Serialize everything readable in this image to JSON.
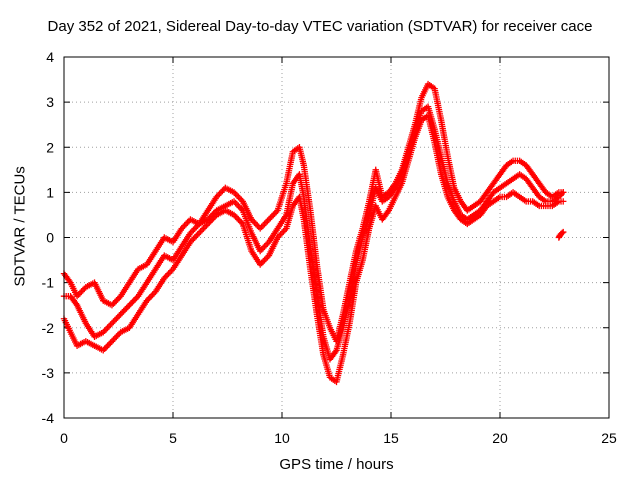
{
  "chart_data": {
    "type": "scatter",
    "title": "Day 352 of 2021, Sidereal Day-to-day VTEC variation (SDTVAR) for receiver cace",
    "xlabel": "GPS time / hours",
    "ylabel": "SDTVAR / TECUs",
    "xlim": [
      0,
      25
    ],
    "ylim": [
      -4,
      4
    ],
    "xticks": [
      0,
      5,
      10,
      15,
      20,
      25
    ],
    "yticks": [
      -4,
      -3,
      -2,
      -1,
      0,
      1,
      2,
      3,
      4
    ],
    "grid": true,
    "marker": "+",
    "color": "#ff0000",
    "series": [
      {
        "x": [
          0.0,
          0.3,
          0.6,
          1.0,
          1.4,
          1.8,
          2.2,
          2.6,
          3.0,
          3.4,
          3.8,
          4.2,
          4.6,
          5.0,
          5.4,
          5.8,
          6.2,
          6.6,
          7.0,
          7.4,
          7.8,
          8.2,
          8.6,
          9.0,
          9.4,
          9.8,
          10.2,
          10.5,
          10.8,
          11.0,
          11.3,
          11.6,
          11.9,
          12.2,
          12.5,
          12.8,
          13.1,
          13.4,
          13.7,
          14.0,
          14.3,
          14.6,
          14.9,
          15.2,
          15.5,
          15.8,
          16.1,
          16.4,
          16.7,
          17.0,
          17.3,
          17.6,
          17.9,
          18.2,
          18.5,
          18.8,
          19.1,
          19.4,
          19.7,
          20.0,
          20.3,
          20.6,
          20.9,
          21.2,
          21.5,
          21.8,
          22.1,
          22.4,
          22.7,
          22.9
        ],
        "y": [
          -0.8,
          -1.0,
          -1.3,
          -1.1,
          -1.0,
          -1.4,
          -1.5,
          -1.3,
          -1.0,
          -0.7,
          -0.6,
          -0.3,
          0.0,
          -0.1,
          0.2,
          0.4,
          0.3,
          0.6,
          0.9,
          1.1,
          1.0,
          0.8,
          0.4,
          0.2,
          0.4,
          0.6,
          1.2,
          1.9,
          2.0,
          1.6,
          0.6,
          -0.6,
          -1.6,
          -2.0,
          -2.3,
          -1.7,
          -1.0,
          -0.3,
          0.2,
          0.8,
          1.5,
          0.9,
          1.0,
          1.2,
          1.5,
          2.0,
          2.5,
          3.1,
          3.4,
          3.3,
          2.6,
          1.8,
          1.1,
          0.8,
          0.6,
          0.7,
          0.8,
          1.0,
          1.2,
          1.4,
          1.6,
          1.7,
          1.7,
          1.6,
          1.4,
          1.2,
          1.0,
          0.9,
          1.0,
          1.0
        ]
      },
      {
        "x": [
          0.0,
          0.3,
          0.6,
          1.0,
          1.4,
          1.8,
          2.2,
          2.6,
          3.0,
          3.4,
          3.8,
          4.2,
          4.6,
          5.0,
          5.4,
          5.8,
          6.2,
          6.6,
          7.0,
          7.4,
          7.8,
          8.2,
          8.6,
          9.0,
          9.4,
          9.8,
          10.2,
          10.5,
          10.8,
          11.0,
          11.3,
          11.6,
          11.9,
          12.2,
          12.5,
          12.8,
          13.1,
          13.4,
          13.7,
          14.0,
          14.3,
          14.6,
          14.9,
          15.2,
          15.5,
          15.8,
          16.1,
          16.4,
          16.7,
          17.0,
          17.3,
          17.6,
          17.9,
          18.2,
          18.5,
          18.8,
          19.1,
          19.4,
          19.7,
          20.0,
          20.3,
          20.6,
          20.9,
          21.2,
          21.5,
          21.8,
          22.1,
          22.4,
          22.7,
          22.9
        ],
        "y": [
          -1.3,
          -1.3,
          -1.5,
          -1.9,
          -2.2,
          -2.1,
          -1.9,
          -1.7,
          -1.5,
          -1.3,
          -1.0,
          -0.7,
          -0.4,
          -0.5,
          -0.2,
          0.1,
          0.3,
          0.4,
          0.6,
          0.7,
          0.8,
          0.6,
          0.1,
          -0.3,
          -0.1,
          0.2,
          0.5,
          1.2,
          1.4,
          0.9,
          -0.2,
          -1.2,
          -2.2,
          -2.7,
          -2.5,
          -2.0,
          -1.4,
          -0.6,
          0.0,
          0.5,
          1.1,
          0.8,
          0.9,
          1.1,
          1.4,
          1.9,
          2.3,
          2.8,
          2.9,
          2.4,
          1.8,
          1.2,
          0.8,
          0.5,
          0.4,
          0.5,
          0.6,
          0.8,
          1.0,
          1.1,
          1.2,
          1.3,
          1.4,
          1.3,
          1.1,
          0.9,
          0.8,
          0.8,
          0.9,
          1.0
        ]
      },
      {
        "x": [
          0.0,
          0.3,
          0.6,
          1.0,
          1.4,
          1.8,
          2.2,
          2.6,
          3.0,
          3.4,
          3.8,
          4.2,
          4.6,
          5.0,
          5.4,
          5.8,
          6.2,
          6.6,
          7.0,
          7.4,
          7.8,
          8.2,
          8.6,
          9.0,
          9.4,
          9.8,
          10.2,
          10.5,
          10.8,
          11.0,
          11.3,
          11.6,
          11.9,
          12.2,
          12.5,
          12.8,
          13.1,
          13.4,
          13.7,
          14.0,
          14.3,
          14.6,
          14.9,
          15.2,
          15.5,
          15.8,
          16.1,
          16.4,
          16.7,
          17.0,
          17.3,
          17.6,
          17.9,
          18.2,
          18.5,
          18.8,
          19.1,
          19.4,
          19.7,
          20.0,
          20.3,
          20.6,
          20.9,
          21.2,
          21.5,
          21.8,
          22.1,
          22.4,
          22.7,
          22.9
        ],
        "y": [
          -1.8,
          -2.1,
          -2.4,
          -2.3,
          -2.4,
          -2.5,
          -2.3,
          -2.1,
          -2.0,
          -1.7,
          -1.4,
          -1.2,
          -0.9,
          -0.7,
          -0.4,
          -0.1,
          0.1,
          0.3,
          0.5,
          0.6,
          0.5,
          0.3,
          -0.3,
          -0.6,
          -0.4,
          0.0,
          0.2,
          0.7,
          0.9,
          0.4,
          -0.7,
          -1.7,
          -2.6,
          -3.1,
          -3.2,
          -2.6,
          -1.9,
          -1.0,
          -0.5,
          0.2,
          0.7,
          0.4,
          0.6,
          0.9,
          1.2,
          1.7,
          2.2,
          2.6,
          2.7,
          2.1,
          1.4,
          0.9,
          0.6,
          0.4,
          0.3,
          0.4,
          0.5,
          0.7,
          0.8,
          0.9,
          0.9,
          1.0,
          0.9,
          0.8,
          0.8,
          0.7,
          0.7,
          0.7,
          0.8,
          0.8
        ]
      },
      {
        "x": [
          22.7,
          22.75,
          22.8,
          22.85,
          22.9
        ],
        "y": [
          0.0,
          0.05,
          0.08,
          0.1,
          0.12
        ]
      }
    ]
  }
}
